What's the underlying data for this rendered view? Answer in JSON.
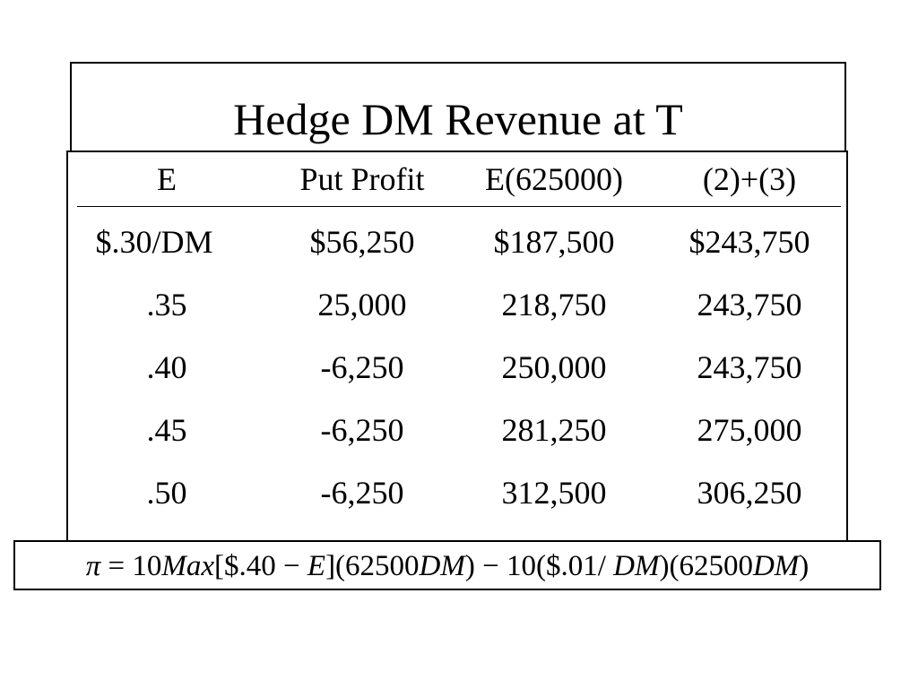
{
  "title": "Hedge DM Revenue at T",
  "table": {
    "headers": [
      "E",
      "Put Profit",
      "E(625000)",
      "(2)+(3)"
    ],
    "rows": [
      [
        "$.30/DM",
        "$56,250",
        "$187,500",
        "$243,750"
      ],
      [
        ".35",
        "25,000",
        "218,750",
        "243,750"
      ],
      [
        ".40",
        "-6,250",
        "250,000",
        "243,750"
      ],
      [
        ".45",
        "-6,250",
        "281,250",
        "275,000"
      ],
      [
        ".50",
        "-6,250",
        "312,500",
        "306,250"
      ]
    ]
  },
  "formula": {
    "pi": "π",
    "eq": " = 10",
    "max": "Max",
    "part1": "[$.40 − ",
    "e": "E",
    "part2": "](62500",
    "dm1": "DM",
    "part3": ") − 10($.01/ ",
    "dm2": "DM",
    "part4": ")(62500",
    "dm3": "DM",
    "part5": ")"
  }
}
